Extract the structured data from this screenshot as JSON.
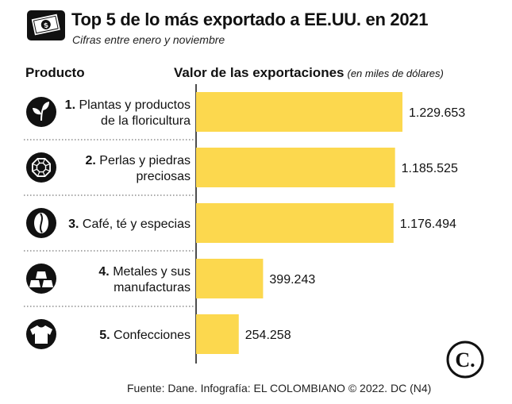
{
  "header": {
    "title": "Top 5 de lo más exportado a EE.UU. en 2021",
    "subtitle": "Cifras entre enero y noviembre",
    "icon": "money-bill-icon"
  },
  "columns": {
    "product": "Producto",
    "value": "Valor de las exportaciones",
    "value_note": "(en miles de dólares)"
  },
  "chart_data": {
    "type": "bar",
    "orientation": "horizontal",
    "categories": [
      {
        "num": "1.",
        "lines": [
          "Plantas y productos",
          "de la floricultura"
        ],
        "icon": "plant-icon"
      },
      {
        "num": "2.",
        "lines": [
          "Perlas y piedras",
          "preciosas"
        ],
        "icon": "gem-icon"
      },
      {
        "num": "3.",
        "lines": [
          "Café, té y especias"
        ],
        "icon": "coffee-bean-icon"
      },
      {
        "num": "4.",
        "lines": [
          "Metales y sus",
          "manufacturas"
        ],
        "icon": "metal-ingots-icon"
      },
      {
        "num": "5.",
        "lines": [
          "Confecciones"
        ],
        "icon": "tshirt-icon"
      }
    ],
    "values": [
      1229653,
      1185525,
      1176494,
      399243,
      254258
    ],
    "value_labels": [
      "1.229.653",
      "1.185.525",
      "1.176.494",
      "399.243",
      "254.258"
    ],
    "bar_color": "#FCD84E",
    "grid": false,
    "legend": "none"
  },
  "footer": {
    "source": "Fuente: Dane. Infografía: EL COLOMBIANO © 2022. DC (N4)",
    "logo_text": "C."
  }
}
